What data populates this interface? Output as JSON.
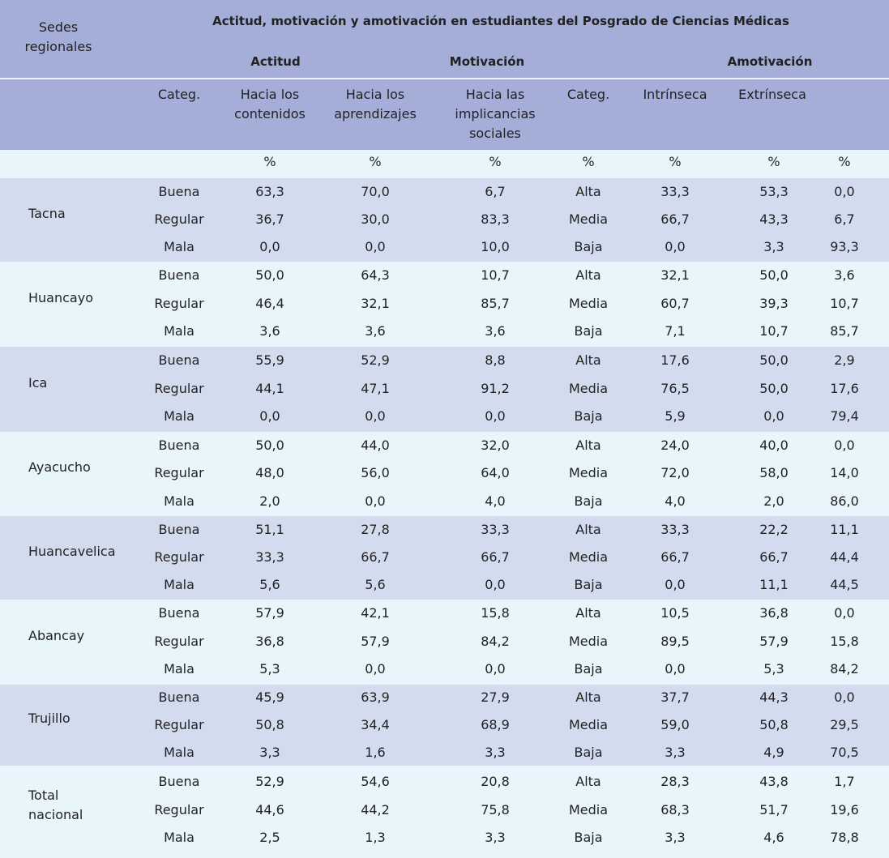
{
  "header": {
    "corner": "Sedes regionales",
    "title": "Actitud, motivación y amotivación en estudiantes del Posgrado de Ciencias Médicas",
    "groups": [
      "Actitud",
      "Motivación",
      "Amotivación"
    ],
    "columns": [
      "Categ.",
      "Hacia los contenidos",
      "Hacia los aprendizajes",
      "Hacia las implicancias sociales",
      "Categ.",
      "Intrínseca",
      "Extrínseca"
    ],
    "units": [
      "%",
      "%",
      "%",
      "%",
      "%",
      "%",
      "%"
    ]
  },
  "table": [
    {
      "sede": "Tacna",
      "rows": [
        [
          "Buena",
          "63,3",
          "70,0",
          "6,7",
          "Alta",
          "33,3",
          "53,3",
          "0,0"
        ],
        [
          "Regular",
          "36,7",
          "30,0",
          "83,3",
          "Media",
          "66,7",
          "43,3",
          "6,7"
        ],
        [
          "Mala",
          "0,0",
          "0,0",
          "10,0",
          "Baja",
          "0,0",
          "3,3",
          "93,3"
        ]
      ]
    },
    {
      "sede": "Huancayo",
      "rows": [
        [
          "Buena",
          "50,0",
          "64,3",
          "10,7",
          "Alta",
          "32,1",
          "50,0",
          "3,6"
        ],
        [
          "Regular",
          "46,4",
          "32,1",
          "85,7",
          "Media",
          "60,7",
          "39,3",
          "10,7"
        ],
        [
          "Mala",
          "3,6",
          "3,6",
          "3,6",
          "Baja",
          "7,1",
          "10,7",
          "85,7"
        ]
      ]
    },
    {
      "sede": "Ica",
      "rows": [
        [
          "Buena",
          "55,9",
          "52,9",
          "8,8",
          "Alta",
          "17,6",
          "50,0",
          "2,9"
        ],
        [
          "Regular",
          "44,1",
          "47,1",
          "91,2",
          "Media",
          "76,5",
          "50,0",
          "17,6"
        ],
        [
          "Mala",
          "0,0",
          "0,0",
          "0,0",
          "Baja",
          "5,9",
          "0,0",
          "79,4"
        ]
      ]
    },
    {
      "sede": "Ayacucho",
      "rows": [
        [
          "Buena",
          "50,0",
          "44,0",
          "32,0",
          "Alta",
          "24,0",
          "40,0",
          "0,0"
        ],
        [
          "Regular",
          "48,0",
          "56,0",
          "64,0",
          "Media",
          "72,0",
          "58,0",
          "14,0"
        ],
        [
          "Mala",
          "2,0",
          "0,0",
          "4,0",
          "Baja",
          "4,0",
          "2,0",
          "86,0"
        ]
      ]
    },
    {
      "sede": "Huancavelica",
      "rows": [
        [
          "Buena",
          "51,1",
          "27,8",
          "33,3",
          "Alta",
          "33,3",
          "22,2",
          "11,1"
        ],
        [
          "Regular",
          "33,3",
          "66,7",
          "66,7",
          "Media",
          "66,7",
          "66,7",
          "44,4"
        ],
        [
          "Mala",
          "5,6",
          "5,6",
          "0,0",
          "Baja",
          "0,0",
          "11,1",
          "44,5"
        ]
      ]
    },
    {
      "sede": "Abancay",
      "rows": [
        [
          "Buena",
          "57,9",
          "42,1",
          "15,8",
          "Alta",
          "10,5",
          "36,8",
          "0,0"
        ],
        [
          "Regular",
          "36,8",
          "57,9",
          "84,2",
          "Media",
          "89,5",
          "57,9",
          "15,8"
        ],
        [
          "Mala",
          "5,3",
          "0,0",
          "0,0",
          "Baja",
          "0,0",
          "5,3",
          "84,2"
        ]
      ]
    },
    {
      "sede": "Trujillo",
      "rows": [
        [
          "Buena",
          "45,9",
          "63,9",
          "27,9",
          "Alta",
          "37,7",
          "44,3",
          "0,0"
        ],
        [
          "Regular",
          "50,8",
          "34,4",
          "68,9",
          "Media",
          "59,0",
          "50,8",
          "29,5"
        ],
        [
          "Mala",
          "3,3",
          "1,6",
          "3,3",
          "Baja",
          "3,3",
          "4,9",
          "70,5"
        ]
      ]
    },
    {
      "sede": "Total nacional",
      "rows": [
        [
          "Buena",
          "52,9",
          "54,6",
          "20,8",
          "Alta",
          "28,3",
          "43,8",
          "1,7"
        ],
        [
          "Regular",
          "44,6",
          "44,2",
          "75,8",
          "Media",
          "68,3",
          "51,7",
          "19,6"
        ],
        [
          "Mala",
          "2,5",
          "1,3",
          "3,3",
          "Baja",
          "3,3",
          "4,6",
          "78,8"
        ]
      ]
    }
  ]
}
